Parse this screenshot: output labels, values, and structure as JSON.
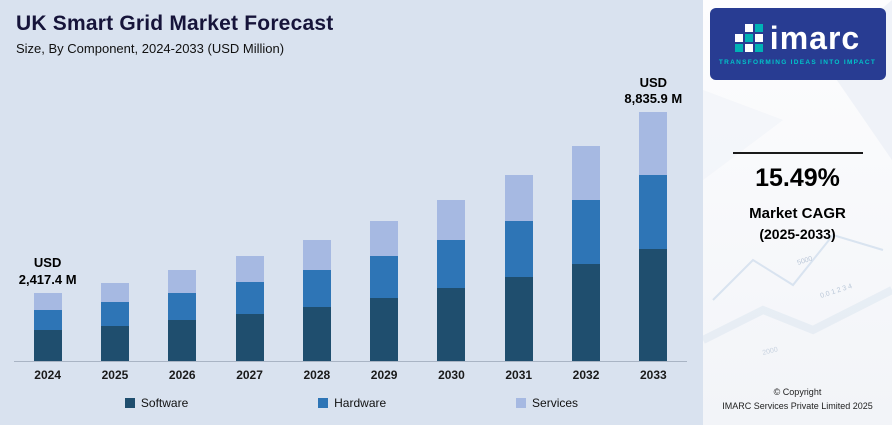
{
  "header": {
    "title": "UK Smart Grid Market Forecast",
    "subtitle": "Size, By Component, 2024-2033 (USD Million)"
  },
  "chart_data": {
    "type": "bar",
    "stacked": true,
    "title": "UK Smart Grid Market Forecast",
    "subtitle": "Size, By Component, 2024-2033 (USD Million)",
    "categories": [
      "2024",
      "2025",
      "2026",
      "2027",
      "2028",
      "2029",
      "2030",
      "2031",
      "2032",
      "2033"
    ],
    "series": [
      {
        "name": "Software",
        "color": "#1f4e6e",
        "values": [
          1087.8,
          1255,
          1450,
          1675,
          1934,
          2234,
          2580,
          2980,
          3441,
          3976.2
        ]
      },
      {
        "name": "Hardware",
        "color": "#2e75b6",
        "values": [
          725.2,
          837,
          967,
          1116,
          1290,
          1489,
          1720,
          1987,
          2294,
          2650.8
        ]
      },
      {
        "name": "Services",
        "color": "#a6b9e2",
        "values": [
          604.4,
          698,
          805,
          930,
          1075,
          1242,
          1434,
          1655,
          1912,
          2208.9
        ]
      }
    ],
    "totals": [
      2417.4,
      2790,
      3222,
      3721,
      4299,
      4965,
      5734,
      6622,
      7647,
      8835.9
    ],
    "annotations": [
      {
        "category": "2024",
        "lines": [
          "USD",
          "2,417.4 M"
        ]
      },
      {
        "category": "2033",
        "lines": [
          "USD",
          "8,835.9 M"
        ]
      }
    ],
    "ylim": [
      0,
      9700
    ],
    "grid": false,
    "legend_position": "bottom",
    "xlabel": "",
    "ylabel": ""
  },
  "sidebar": {
    "logo_text": "imarc",
    "tagline": "TRANSFORMING IDEAS INTO IMPACT",
    "cagr_value": "15.49%",
    "cagr_label_line1": "Market CAGR",
    "cagr_label_line2": "(2025-2033)",
    "copyright_line1": "© Copyright",
    "copyright_line2": "IMARC Services Private Limited 2025"
  }
}
